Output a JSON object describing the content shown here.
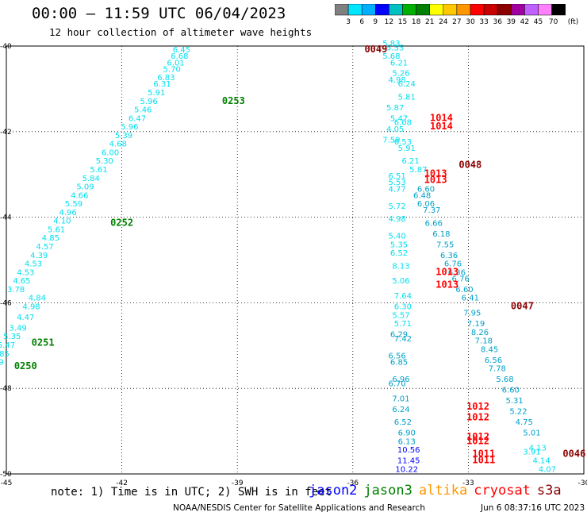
{
  "title": "00:00 – 11:59 UTC 06/04/2023",
  "subtitle": "12 hour collection of altimeter wave heights",
  "colorbar": {
    "unit": "(ft)",
    "ticks": [
      "3",
      "6",
      "9",
      "12",
      "15",
      "18",
      "21",
      "24",
      "27",
      "30",
      "33",
      "36",
      "39",
      "42",
      "45",
      "70"
    ],
    "colors": [
      "#808080",
      "#00e5ff",
      "#00b0ff",
      "#0000ff",
      "#00c0c0",
      "#00b000",
      "#008000",
      "#ffff00",
      "#ffc800",
      "#ff9600",
      "#ff0000",
      "#c80000",
      "#8b0000",
      "#a000a0",
      "#c060ff",
      "#ff80ff",
      "#000000"
    ]
  },
  "axes": {
    "x_ticks": [
      "-45",
      "-42",
      "-39",
      "-36",
      "-33",
      "-30"
    ],
    "y_ticks": [
      "-40",
      "-42",
      "-44",
      "-46",
      "-48",
      "-50"
    ]
  },
  "satellite_colors": {
    "jason2": "#0000ff",
    "jason3": "#008000",
    "altika": "#ff9600",
    "cryosat": "#ff0000",
    "s3a": "#8b0000",
    "cyan": "#00e0f0",
    "teal": "#00a0c8"
  },
  "tracks": [
    {
      "color": "cyan",
      "lon": [
        -40.45,
        -40.5,
        -40.6,
        -40.7,
        -40.85,
        -40.95,
        -41.1,
        -41.3,
        -41.45,
        -41.6,
        -41.8,
        -41.95,
        -42.1,
        -42.3,
        -42.45,
        -42.6,
        -42.8,
        -42.95,
        -43.1,
        -43.25,
        -43.4,
        -43.55,
        -43.7,
        -43.85,
        -44.0,
        -44.15,
        -44.3,
        -44.5,
        -44.6,
        -44.75
      ],
      "lat": [
        -40.15,
        -40.3,
        -40.45,
        -40.6,
        -40.8,
        -40.95,
        -41.15,
        -41.35,
        -41.55,
        -41.75,
        -41.95,
        -42.15,
        -42.35,
        -42.55,
        -42.75,
        -42.95,
        -43.15,
        -43.35,
        -43.55,
        -43.75,
        -43.95,
        -44.15,
        -44.35,
        -44.55,
        -44.75,
        -44.95,
        -45.15,
        -45.35,
        -45.55,
        -45.75
      ],
      "vals": [
        "6.45",
        "6.68",
        "6.01",
        "5.70",
        "6.83",
        "6.31",
        "5.91",
        "5.96",
        "5.46",
        "6.47",
        "5.96",
        "5.39",
        "4.68",
        "6.00",
        "5.30",
        "5.61",
        "5.84",
        "5.09",
        "4.66",
        "5.59",
        "4.96",
        "4.10",
        "5.61",
        "4.85",
        "4.57",
        "4.39",
        "4.53",
        "4.53",
        "4.65",
        "3.78"
      ]
    },
    {
      "color": "cyan",
      "lon": [
        -44.2,
        -44.35,
        -44.5,
        -44.7,
        -44.85,
        -45.0,
        -45.15,
        -45.3,
        -45.45,
        -45.55,
        -45.65
      ],
      "lat": [
        -45.95,
        -46.15,
        -46.4,
        -46.65,
        -46.85,
        -47.05,
        -47.25,
        -47.45,
        -47.55,
        -47.75,
        -47.95
      ],
      "vals": [
        "4.84",
        "4.98",
        "4.47",
        "3.49",
        "5.35",
        "5.47",
        "4.85",
        "3.89",
        "4.20",
        "4.82",
        ""
      ]
    },
    {
      "color": "cyan",
      "lon": [
        -35.0,
        -34.9,
        -35.0,
        -34.8,
        -34.75,
        -34.85,
        -34.6,
        -34.6,
        -34.9,
        -34.8,
        -34.7
      ],
      "lat": [
        -40.0,
        -40.1,
        -40.3,
        -40.45,
        -40.7,
        -40.85,
        -40.95,
        -41.25,
        -41.5,
        -41.75,
        -41.85
      ],
      "vals": [
        "5.83",
        "5.55",
        "5.68",
        "6.21",
        "5.26",
        "4.98",
        "6.24",
        "5.81",
        "5.87",
        "5.47",
        "6.08"
      ]
    },
    {
      "color": "cyan",
      "lon": [
        -34.9,
        -35.0,
        -34.7,
        -34.6,
        -34.5,
        -34.3
      ],
      "lat": [
        -42.0,
        -42.25,
        -42.3,
        -42.45,
        -42.75,
        -42.95
      ],
      "vals": [
        "4.05",
        "7.59",
        "6.53",
        "5.91",
        "6.21",
        "5.87"
      ]
    },
    {
      "color": "cyan",
      "lon": [
        -34.85,
        -34.85,
        -34.85,
        -34.85,
        -34.85,
        -34.85,
        -34.8,
        -34.8,
        -34.75,
        -34.75
      ],
      "lat": [
        -43.1,
        -43.25,
        -43.4,
        -43.8,
        -44.1,
        -44.5,
        -44.7,
        -44.9,
        -45.2,
        -45.55
      ],
      "vals": [
        "6.51",
        "5.53",
        "4.77",
        "5.72",
        "4.98",
        "5.40",
        "5.35",
        "6.52",
        "8.13",
        "5.06"
      ]
    },
    {
      "color": "cyan",
      "lon": [
        -34.7,
        -34.7,
        -34.75,
        -34.7
      ],
      "lat": [
        -45.9,
        -46.15,
        -46.35,
        -46.55
      ],
      "vals": [
        "7.64",
        "6.30",
        "5.57",
        "5.71"
      ]
    },
    {
      "color": "teal",
      "lon": [
        -34.1,
        -34.2,
        -34.1,
        -33.95,
        -33.9,
        -33.7,
        -33.6,
        -33.5,
        -33.4,
        -33.3,
        -33.2,
        -33.1,
        -32.95,
        -32.9
      ],
      "lat": [
        -43.4,
        -43.55,
        -43.75,
        -43.9,
        -44.2,
        -44.45,
        -44.7,
        -44.95,
        -45.15,
        -45.35,
        -45.5,
        -45.75,
        -45.95,
        -46.15
      ],
      "vals": [
        "6.60",
        "6.48",
        "6.06",
        "7.37",
        "6.66",
        "6.18",
        "7.55",
        "6.36",
        "6.76",
        "6.36",
        "6.76",
        "6.60",
        "6.41",
        ""
      ]
    },
    {
      "color": "teal",
      "lon": [
        -32.9,
        -32.8,
        -32.7,
        -32.6,
        -32.45,
        -32.35,
        -32.25,
        -32.05,
        -31.9,
        -31.8,
        -31.7,
        -31.55,
        -31.35
      ],
      "lat": [
        -46.3,
        -46.55,
        -46.75,
        -46.95,
        -47.15,
        -47.4,
        -47.6,
        -47.85,
        -48.1,
        -48.35,
        -48.6,
        -48.85,
        -49.1
      ],
      "vals": [
        "7.95",
        "7.19",
        "8.26",
        "7.18",
        "8.45",
        "6.56",
        "7.78",
        "5.68",
        "6.60",
        "5.31",
        "5.22",
        "4.75",
        "5.01"
      ]
    },
    {
      "color": "teal",
      "lon": [
        -34.8,
        -34.7,
        -34.85,
        -34.8,
        -34.75,
        -34.85,
        -34.75,
        -34.75,
        -34.7,
        -34.6,
        -34.6
      ],
      "lat": [
        -46.8,
        -46.9,
        -47.3,
        -47.45,
        -47.85,
        -47.95,
        -48.3,
        -48.55,
        -48.85,
        -49.1,
        -49.3
      ],
      "vals": [
        "6.29",
        "7.42",
        "6.56",
        "6.85",
        "6.96",
        "6.70",
        "7.01",
        "6.24",
        "6.52",
        "6.90",
        "6.13"
      ]
    },
    {
      "color": "cyan",
      "lon": [
        -31.2,
        -31.35,
        -31.1,
        -30.95
      ],
      "lat": [
        -49.45,
        -49.55,
        -49.75,
        -49.95
      ],
      "vals": [
        "4.13",
        "3.91",
        "4.14",
        "4.07"
      ]
    },
    {
      "color": "jason2",
      "lon": [
        -34.55,
        -34.55,
        -34.6
      ],
      "lat": [
        -49.5,
        -49.75,
        -49.95
      ],
      "vals": [
        "10.56",
        "11.45",
        "10.22"
      ]
    }
  ],
  "time_labels": [
    {
      "lon": -35.4,
      "lat": -40.15,
      "text": "0049",
      "color": "s3a"
    },
    {
      "lon": -39.1,
      "lat": -41.35,
      "text": "0253",
      "color": "jason3"
    },
    {
      "lon": -33.7,
      "lat": -41.75,
      "text": "1014",
      "color": "cryosat"
    },
    {
      "lon": -33.7,
      "lat": -41.95,
      "text": "1014",
      "color": "cryosat"
    },
    {
      "lon": -32.95,
      "lat": -42.85,
      "text": "0048",
      "color": "s3a"
    },
    {
      "lon": -33.85,
      "lat": -43.05,
      "text": "1013",
      "color": "cryosat"
    },
    {
      "lon": -33.85,
      "lat": -43.2,
      "text": "1013",
      "color": "cryosat"
    },
    {
      "lon": -42.0,
      "lat": -44.2,
      "text": "0252",
      "color": "jason3"
    },
    {
      "lon": -33.55,
      "lat": -45.35,
      "text": "1013",
      "color": "cryosat"
    },
    {
      "lon": -33.55,
      "lat": -45.65,
      "text": "1013",
      "color": "cryosat"
    },
    {
      "lon": -31.6,
      "lat": -46.15,
      "text": "0047",
      "color": "s3a"
    },
    {
      "lon": -44.05,
      "lat": -47.0,
      "text": "0251",
      "color": "jason3"
    },
    {
      "lon": -44.5,
      "lat": -47.55,
      "text": "0250",
      "color": "jason3"
    },
    {
      "lon": -32.75,
      "lat": -48.5,
      "text": "1012",
      "color": "cryosat"
    },
    {
      "lon": -32.75,
      "lat": -48.75,
      "text": "1012",
      "color": "cryosat"
    },
    {
      "lon": -32.75,
      "lat": -49.2,
      "text": "1012",
      "color": "cryosat"
    },
    {
      "lon": -32.75,
      "lat": -49.3,
      "text": "1012",
      "color": "cryosat"
    },
    {
      "lon": -32.6,
      "lat": -49.6,
      "text": "1011",
      "color": "cryosat"
    },
    {
      "lon": -32.6,
      "lat": -49.75,
      "text": "1011",
      "color": "cryosat"
    },
    {
      "lon": -30.25,
      "lat": -49.6,
      "text": "0046",
      "color": "s3a"
    }
  ],
  "note": "note: 1) Time is in UTC; 2) SWH is in feet",
  "legend": [
    {
      "label": "jason2",
      "color": "#0000ff"
    },
    {
      "label": "jason3",
      "color": "#008000"
    },
    {
      "label": "altika",
      "color": "#ff9600"
    },
    {
      "label": "cryosat",
      "color": "#ff0000"
    },
    {
      "label": "s3a",
      "color": "#8b0000"
    }
  ],
  "credit": "NOAA/NESDIS Center for Satellite Applications and Research",
  "generated": "Jun  6 08:37:16 UTC 2023"
}
